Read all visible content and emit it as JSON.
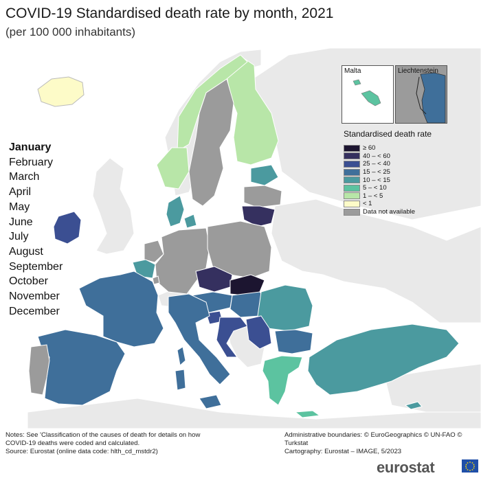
{
  "title": "COVID-19 Standardised death rate by month, 2021",
  "subtitle": "(per 100 000 inhabitants)",
  "months": [
    "January",
    "February",
    "March",
    "April",
    "May",
    "June",
    "July",
    "August",
    "September",
    "October",
    "November",
    "December"
  ],
  "selected_month": "January",
  "insets": {
    "malta": "Malta",
    "liechtenstein": "Liechtenstein"
  },
  "legend": {
    "title": "Standardised death rate",
    "items": [
      {
        "label": "≥ 60",
        "color": "#1c1530"
      },
      {
        "label": "40 – < 60",
        "color": "#35305f"
      },
      {
        "label": "25 – < 40",
        "color": "#3b4f92"
      },
      {
        "label": "15 – < 25",
        "color": "#3f6f9a"
      },
      {
        "label": "10 – < 15",
        "color": "#4b9a9f"
      },
      {
        "label": "5 – < 10",
        "color": "#5cc3a0"
      },
      {
        "label": "1 – < 5",
        "color": "#b8e6a8"
      },
      {
        "label": "< 1",
        "color": "#fdfbc8"
      },
      {
        "label": "Data not available",
        "color": "#9b9b9b"
      }
    ]
  },
  "footer": {
    "notes": "Notes: See 'Classification of the causes of death for details on how COVID-19 deaths were coded and calculated.",
    "source": "Source: Eurostat (online data code: hlth_cd_mstdr2)",
    "boundaries": "Administrative boundaries: © EuroGeographics © UN-FAO © Turkstat",
    "cartography": "Cartography: Eurostat – IMAGE, 5/2023"
  },
  "brand": "eurostat",
  "colors": {
    "sea": "#ffffff",
    "non_eu_land": "#e9e9e9",
    "border": "#ffffff"
  }
}
